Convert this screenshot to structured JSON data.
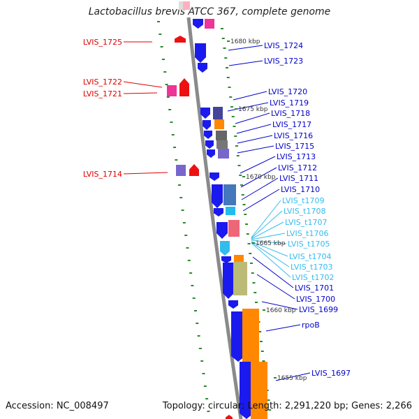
{
  "title": "Lactobacillus brevis ATCC 367, complete genome",
  "footer": {
    "accession": "Accession: NC_008497",
    "summary": "Topology: circular; Length: 2,291,220 bp; Genes: 2,266"
  },
  "colors": {
    "backbone": "#8a8a8a",
    "minus_strand_label": "#e00000",
    "cds_label": "#0000cc",
    "trna_label": "#33bbee",
    "tick": "#2a8a2a"
  },
  "ticks": [
    "1680 kbp",
    "1675 kbp",
    "1670 kbp",
    "1665 kbp",
    "1660 kbp",
    "1655 kbp"
  ],
  "left_labels": [
    "LVIS_1725",
    "LVIS_1722",
    "LVIS_1721",
    "LVIS_1714"
  ],
  "right_labels": [
    "LVIS_1724",
    "LVIS_1723",
    "LVIS_1720",
    "LVIS_1719",
    "LVIS_1718",
    "LVIS_1717",
    "LVIS_1716",
    "LVIS_1715",
    "LVIS_1713",
    "LVIS_1712",
    "LVIS_1711",
    "LVIS_1710",
    "LVIS_t1709",
    "LVIS_t1708",
    "LVIS_t1707",
    "LVIS_t1706",
    "LVIS_t1705",
    "LVIS_t1704",
    "LVIS_t1703",
    "LVIS_t1702",
    "LVIS_1701",
    "LVIS_1700",
    "LVIS_1699",
    "rpoB",
    "LVIS_1697"
  ]
}
